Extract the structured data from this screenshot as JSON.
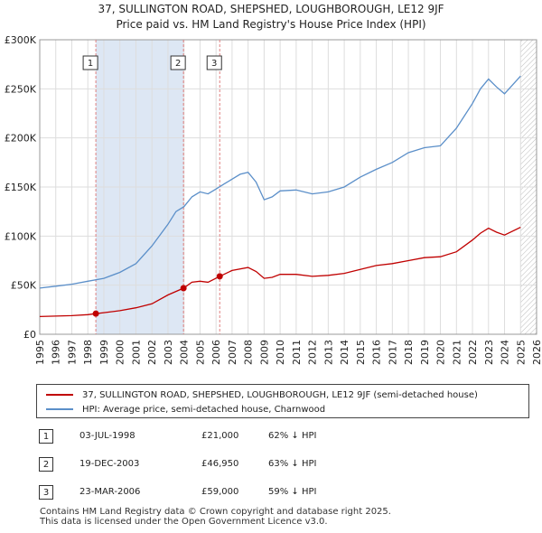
{
  "colors": {
    "property": "#c00000",
    "hpi": "#5b8fc9",
    "grid": "#dddddd",
    "marker_line": "#e08080"
  },
  "chart_data": {
    "type": "line",
    "title": "37, SULLINGTON ROAD, SHEPSHED, LOUGHBOROUGH, LE12 9JF",
    "subtitle": "Price paid vs. HM Land Registry's House Price Index (HPI)",
    "xlim": [
      1995,
      2026
    ],
    "ylim": [
      0,
      300000
    ],
    "x_ticks": [
      "1995",
      "1996",
      "1997",
      "1998",
      "1999",
      "2000",
      "2001",
      "2002",
      "2003",
      "2004",
      "2005",
      "2006",
      "2007",
      "2008",
      "2009",
      "2010",
      "2011",
      "2012",
      "2013",
      "2014",
      "2015",
      "2016",
      "2017",
      "2018",
      "2019",
      "2020",
      "2021",
      "2022",
      "2023",
      "2024",
      "2025",
      "2026"
    ],
    "y_ticks": [
      {
        "value": 0,
        "label": "£0"
      },
      {
        "value": 50000,
        "label": "£50K"
      },
      {
        "value": 100000,
        "label": "£100K"
      },
      {
        "value": 150000,
        "label": "£150K"
      },
      {
        "value": 200000,
        "label": "£200K"
      },
      {
        "value": 250000,
        "label": "£250K"
      },
      {
        "value": 300000,
        "label": "£300K"
      }
    ],
    "series": [
      {
        "name": "37, SULLINGTON ROAD, SHEPSHED, LOUGHBOROUGH, LE12 9JF (semi-detached house)",
        "color": "#c00000",
        "x": [
          1995.0,
          1996.0,
          1997.0,
          1998.0,
          1998.5,
          1999.0,
          2000.0,
          2001.0,
          2002.0,
          2003.0,
          2003.97,
          2004.5,
          2005.0,
          2005.5,
          2006.23,
          2007.0,
          2008.0,
          2008.5,
          2009.0,
          2009.5,
          2010.0,
          2011.0,
          2012.0,
          2013.0,
          2014.0,
          2015.0,
          2016.0,
          2017.0,
          2018.0,
          2019.0,
          2020.0,
          2021.0,
          2022.0,
          2022.5,
          2023.0,
          2023.5,
          2024.0,
          2025.0
        ],
        "values": [
          18000,
          18500,
          19000,
          20000,
          21000,
          22000,
          24000,
          27000,
          31000,
          40000,
          46950,
          53000,
          54000,
          53000,
          59000,
          65000,
          68000,
          64000,
          57000,
          58000,
          61000,
          61000,
          59000,
          60000,
          62000,
          66000,
          70000,
          72000,
          75000,
          78000,
          79000,
          84000,
          96000,
          103000,
          108000,
          104000,
          101000,
          109000
        ]
      },
      {
        "name": "HPI: Average price, semi-detached house, Charnwood",
        "color": "#5b8fc9",
        "x": [
          1995.0,
          1996.0,
          1997.0,
          1998.0,
          1999.0,
          2000.0,
          2001.0,
          2002.0,
          2003.0,
          2003.5,
          2004.0,
          2004.5,
          2005.0,
          2005.5,
          2006.0,
          2006.5,
          2007.0,
          2007.5,
          2008.0,
          2008.5,
          2009.0,
          2009.5,
          2010.0,
          2011.0,
          2012.0,
          2013.0,
          2014.0,
          2015.0,
          2016.0,
          2017.0,
          2018.0,
          2019.0,
          2020.0,
          2021.0,
          2022.0,
          2022.5,
          2023.0,
          2023.5,
          2024.0,
          2025.0
        ],
        "values": [
          47000,
          49000,
          51000,
          54000,
          57000,
          63000,
          72000,
          90000,
          112000,
          125000,
          130000,
          140000,
          145000,
          143000,
          148000,
          153000,
          158000,
          163000,
          165000,
          155000,
          137000,
          140000,
          146000,
          147000,
          143000,
          145000,
          150000,
          160000,
          168000,
          175000,
          185000,
          190000,
          192000,
          210000,
          235000,
          250000,
          260000,
          252000,
          245000,
          263000
        ]
      }
    ],
    "transactions": [
      {
        "label": "1",
        "date": "03-JUL-1998",
        "x": 1998.5,
        "price_value": 21000,
        "price": "£21,000",
        "hpi": "62% ↓ HPI"
      },
      {
        "label": "2",
        "date": "19-DEC-2003",
        "x": 2003.97,
        "price_value": 46950,
        "price": "£46,950",
        "hpi": "63% ↓ HPI"
      },
      {
        "label": "3",
        "date": "23-MAR-2006",
        "x": 2006.23,
        "price_value": 59000,
        "price": "£59,000",
        "hpi": "59% ↓ HPI"
      }
    ],
    "shaded_periods": [
      [
        1998.5,
        2003.97
      ],
      [
        2006.23,
        2006.23
      ]
    ],
    "future_hatch_start": 2025.0,
    "legend_position": "below"
  },
  "legend": {
    "property_label": "37, SULLINGTON ROAD, SHEPSHED, LOUGHBOROUGH, LE12 9JF (semi-detached house)",
    "hpi_label": "HPI: Average price, semi-detached house, Charnwood"
  },
  "footer": {
    "line1": "Contains HM Land Registry data © Crown copyright and database right 2025.",
    "line2": "This data is licensed under the Open Government Licence v3.0."
  }
}
